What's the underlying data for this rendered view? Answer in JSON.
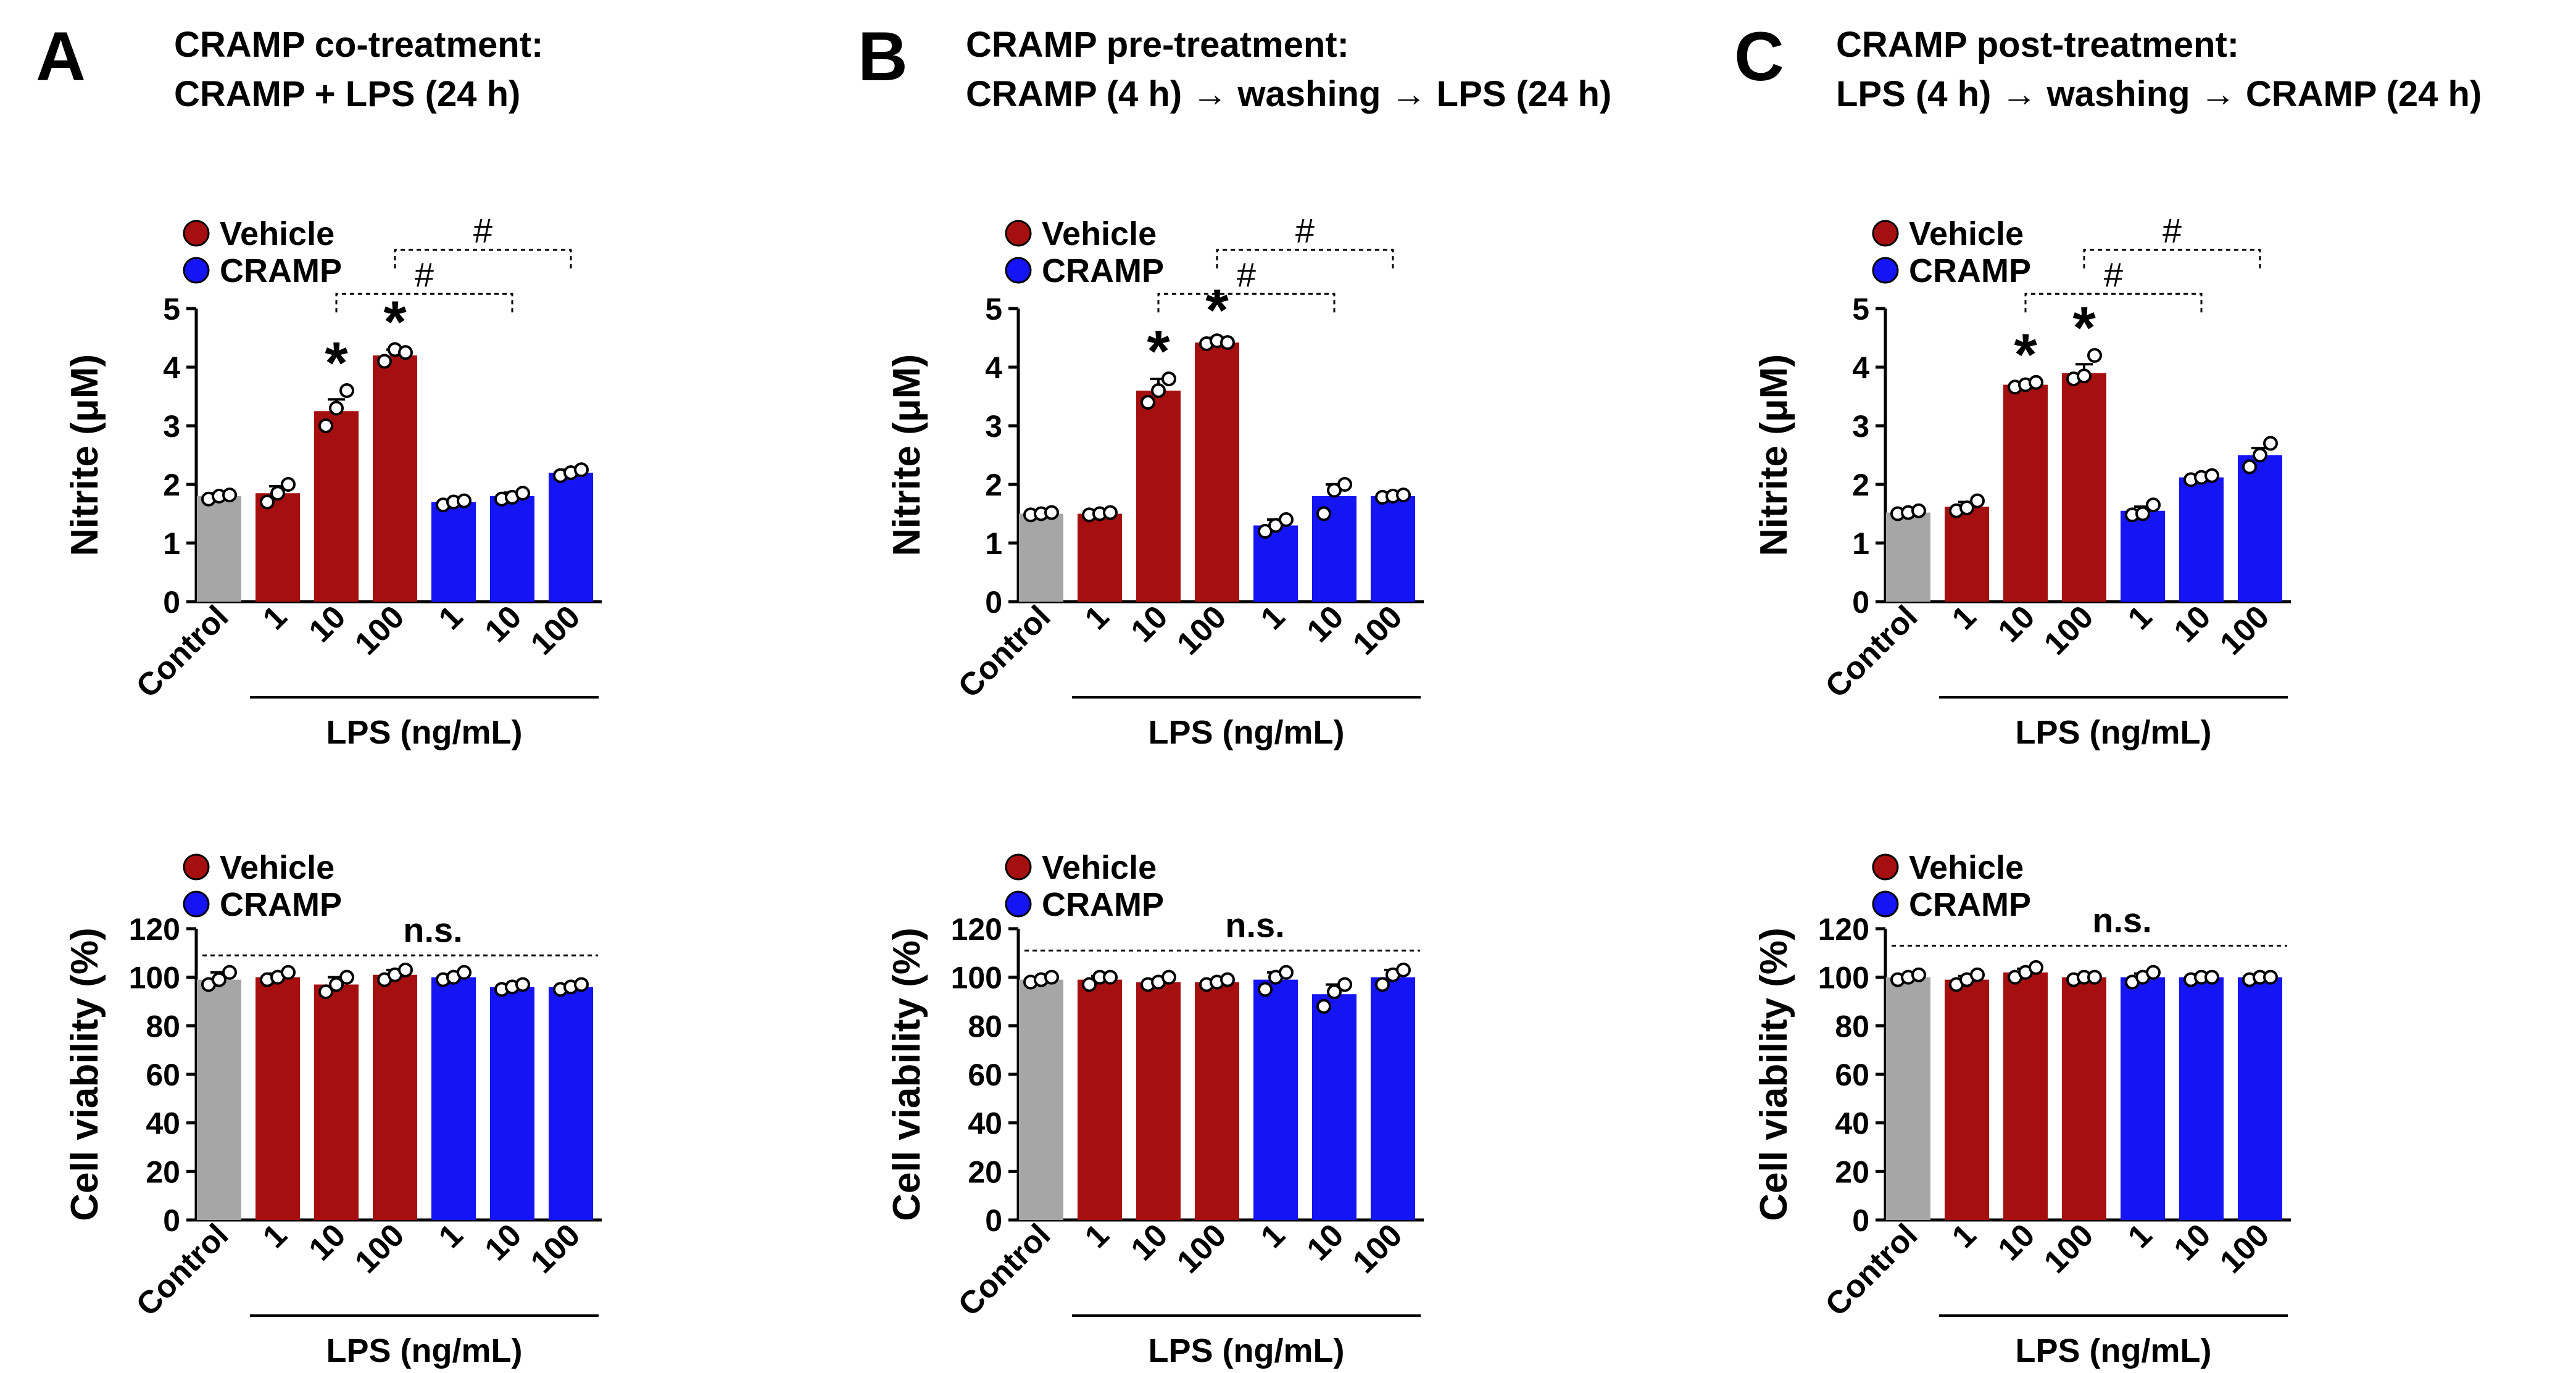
{
  "colors": {
    "control": "#a6a6a6",
    "vehicle": "#a50f0f",
    "cramp": "#1414f5",
    "ink": "#000000"
  },
  "legend": {
    "vehicle": "Vehicle",
    "cramp": "CRAMP"
  },
  "panels": [
    {
      "letter": "A",
      "title1": "CRAMP co-treatment:",
      "title2": "CRAMP + LPS (24 h)"
    },
    {
      "letter": "B",
      "title1": "CRAMP pre-treatment:",
      "title2": "CRAMP (4 h) → washing → LPS (24 h)"
    },
    {
      "letter": "C",
      "title1": "CRAMP post-treatment:",
      "title2": "LPS (4 h) → washing → CRAMP (24 h)"
    }
  ],
  "chart_data": [
    {
      "panel": "A",
      "kind": "nitrite",
      "type": "bar",
      "ylabel": "Nitrite (μM)",
      "ylim": [
        0,
        5
      ],
      "yticks": [
        0,
        1,
        2,
        3,
        4,
        5
      ],
      "xgroup_label": "LPS (ng/mL)",
      "categories": [
        "Control",
        "1",
        "10",
        "100",
        "1",
        "10",
        "100"
      ],
      "groups": [
        "control",
        "vehicle",
        "vehicle",
        "vehicle",
        "cramp",
        "cramp",
        "cramp"
      ],
      "values": [
        1.8,
        1.85,
        3.25,
        4.2,
        1.7,
        1.8,
        2.2
      ],
      "errors": [
        0.05,
        0.12,
        0.2,
        0.1,
        0.04,
        0.06,
        0.05
      ],
      "points": [
        [
          1.75,
          1.8,
          1.82
        ],
        [
          1.7,
          1.85,
          2.0
        ],
        [
          3.0,
          3.3,
          3.6
        ],
        [
          4.1,
          4.3,
          4.25
        ],
        [
          1.65,
          1.7,
          1.72
        ],
        [
          1.75,
          1.78,
          1.85
        ],
        [
          2.15,
          2.2,
          2.25
        ]
      ],
      "stars": [
        2,
        3
      ],
      "star_label": "*",
      "hash_label": "#",
      "hash": [
        {
          "from": 2,
          "to": 5,
          "y": 5.25
        },
        {
          "from": 3,
          "to": 6,
          "y": 6.0
        }
      ],
      "ns": null
    },
    {
      "panel": "A",
      "kind": "viability",
      "type": "bar",
      "ylabel": "Cell viability (%)",
      "ylim": [
        0,
        120
      ],
      "yticks": [
        0,
        20,
        40,
        60,
        80,
        100,
        120
      ],
      "xgroup_label": "LPS (ng/mL)",
      "categories": [
        "Control",
        "1",
        "10",
        "100",
        "1",
        "10",
        "100"
      ],
      "groups": [
        "control",
        "vehicle",
        "vehicle",
        "vehicle",
        "cramp",
        "cramp",
        "cramp"
      ],
      "values": [
        99,
        100,
        97,
        101,
        100,
        96,
        96
      ],
      "errors": [
        3,
        1.5,
        3,
        2,
        1,
        1,
        0.8
      ],
      "points": [
        [
          97,
          99,
          102
        ],
        [
          99,
          100,
          102
        ],
        [
          94,
          97,
          100
        ],
        [
          99,
          101,
          103
        ],
        [
          99,
          100,
          102
        ],
        [
          95,
          96,
          97
        ],
        [
          95,
          96,
          97
        ]
      ],
      "stars": [],
      "star_label": "*",
      "hash_label": "#",
      "hash": [],
      "ns": {
        "label": "n.s.",
        "y": 109
      }
    },
    {
      "panel": "B",
      "kind": "nitrite",
      "type": "bar",
      "ylabel": "Nitrite (μM)",
      "ylim": [
        0,
        5
      ],
      "yticks": [
        0,
        1,
        2,
        3,
        4,
        5
      ],
      "xgroup_label": "LPS (ng/mL)",
      "categories": [
        "Control",
        "1",
        "10",
        "100",
        "1",
        "10",
        "100"
      ],
      "groups": [
        "control",
        "vehicle",
        "vehicle",
        "vehicle",
        "cramp",
        "cramp",
        "cramp"
      ],
      "values": [
        1.5,
        1.5,
        3.6,
        4.42,
        1.3,
        1.8,
        1.8
      ],
      "errors": [
        0.03,
        0.03,
        0.2,
        0.08,
        0.1,
        0.2,
        0.04
      ],
      "points": [
        [
          1.48,
          1.5,
          1.52
        ],
        [
          1.48,
          1.5,
          1.52
        ],
        [
          3.4,
          3.6,
          3.8
        ],
        [
          4.4,
          4.45,
          4.42
        ],
        [
          1.2,
          1.3,
          1.4
        ],
        [
          1.5,
          1.9,
          2.0
        ],
        [
          1.78,
          1.8,
          1.82
        ]
      ],
      "stars": [
        2,
        3
      ],
      "star_label": "*",
      "hash_label": "#",
      "hash": [
        {
          "from": 2,
          "to": 5,
          "y": 5.25
        },
        {
          "from": 3,
          "to": 6,
          "y": 6.0
        }
      ],
      "ns": null
    },
    {
      "panel": "B",
      "kind": "viability",
      "type": "bar",
      "ylabel": "Cell viability (%)",
      "ylim": [
        0,
        120
      ],
      "yticks": [
        0,
        20,
        40,
        60,
        80,
        100,
        120
      ],
      "xgroup_label": "LPS (ng/mL)",
      "categories": [
        "Control",
        "1",
        "10",
        "100",
        "1",
        "10",
        "100"
      ],
      "groups": [
        "control",
        "vehicle",
        "vehicle",
        "vehicle",
        "cramp",
        "cramp",
        "cramp"
      ],
      "values": [
        99,
        99,
        98,
        98,
        99,
        93,
        100
      ],
      "errors": [
        1,
        1.5,
        1,
        0.5,
        3,
        4,
        3
      ],
      "points": [
        [
          98,
          99,
          100
        ],
        [
          97,
          100,
          100
        ],
        [
          97,
          98,
          100
        ],
        [
          97,
          98,
          99
        ],
        [
          95,
          100,
          102
        ],
        [
          88,
          94,
          97
        ],
        [
          97,
          101,
          103
        ]
      ],
      "stars": [],
      "star_label": "*",
      "hash_label": "#",
      "hash": [],
      "ns": {
        "label": "n.s.",
        "y": 111
      }
    },
    {
      "panel": "C",
      "kind": "nitrite",
      "type": "bar",
      "ylabel": "Nitrite (μM)",
      "ylim": [
        0,
        5
      ],
      "yticks": [
        0,
        1,
        2,
        3,
        4,
        5
      ],
      "xgroup_label": "LPS (ng/mL)",
      "categories": [
        "Control",
        "1",
        "10",
        "100",
        "1",
        "10",
        "100"
      ],
      "groups": [
        "control",
        "vehicle",
        "vehicle",
        "vehicle",
        "cramp",
        "cramp",
        "cramp"
      ],
      "values": [
        1.52,
        1.62,
        3.7,
        3.9,
        1.55,
        2.12,
        2.5
      ],
      "errors": [
        0.03,
        0.08,
        0.04,
        0.15,
        0.07,
        0.04,
        0.12
      ],
      "points": [
        [
          1.5,
          1.52,
          1.55
        ],
        [
          1.55,
          1.6,
          1.72
        ],
        [
          3.66,
          3.7,
          3.74
        ],
        [
          3.8,
          3.85,
          4.2
        ],
        [
          1.48,
          1.5,
          1.65
        ],
        [
          2.08,
          2.12,
          2.15
        ],
        [
          2.3,
          2.5,
          2.7
        ]
      ],
      "stars": [
        2,
        3
      ],
      "star_label": "*",
      "hash_label": "#",
      "hash": [
        {
          "from": 2,
          "to": 5,
          "y": 5.25
        },
        {
          "from": 3,
          "to": 6,
          "y": 6.0
        }
      ],
      "ns": null
    },
    {
      "panel": "C",
      "kind": "viability",
      "type": "bar",
      "ylabel": "Cell viability (%)",
      "ylim": [
        0,
        120
      ],
      "yticks": [
        0,
        20,
        40,
        60,
        80,
        100,
        120
      ],
      "xgroup_label": "LPS (ng/mL)",
      "categories": [
        "Control",
        "1",
        "10",
        "100",
        "1",
        "10",
        "100"
      ],
      "groups": [
        "control",
        "vehicle",
        "vehicle",
        "vehicle",
        "cramp",
        "cramp",
        "cramp"
      ],
      "values": [
        100,
        99,
        102,
        100,
        100,
        100,
        100
      ],
      "errors": [
        1,
        1.5,
        1.5,
        0.5,
        1.5,
        0.5,
        0.5
      ],
      "points": [
        [
          99,
          100,
          101
        ],
        [
          97,
          99,
          101
        ],
        [
          100,
          102,
          104
        ],
        [
          99,
          100,
          100
        ],
        [
          98,
          100,
          102
        ],
        [
          99,
          100,
          100
        ],
        [
          99,
          100,
          100
        ]
      ],
      "stars": [],
      "star_label": "*",
      "hash_label": "#",
      "hash": [],
      "ns": {
        "label": "n.s.",
        "y": 113
      }
    }
  ]
}
